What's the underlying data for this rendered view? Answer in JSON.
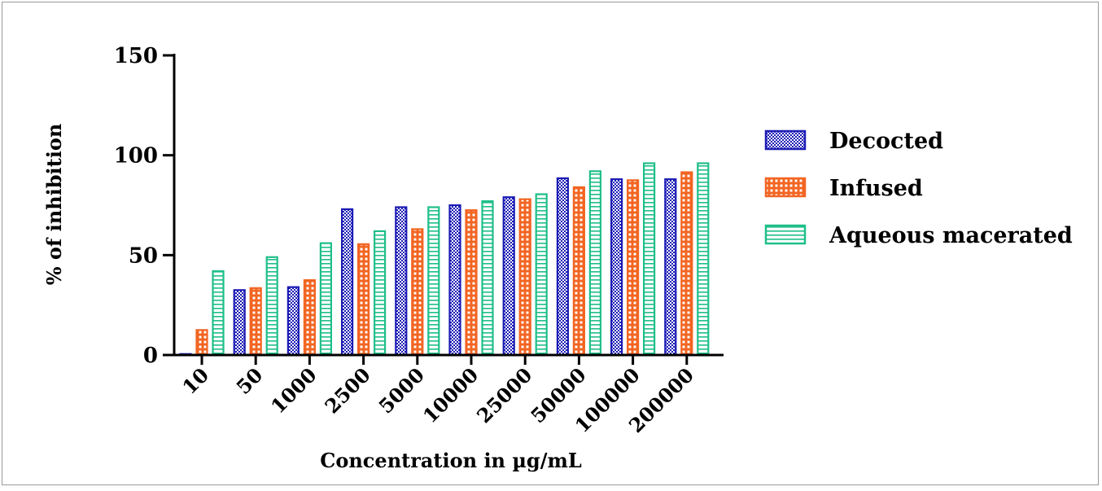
{
  "chart_data": {
    "type": "bar",
    "title": "",
    "xlabel": "Concentration in µg/mL",
    "ylabel": "% of inhibition",
    "ylim": [
      0,
      150
    ],
    "yticks": [
      "0",
      "50",
      "100",
      "150"
    ],
    "categories": [
      "10",
      "50",
      "1000",
      "2500",
      "5000",
      "10000",
      "25000",
      "50000",
      "100000",
      "200000"
    ],
    "series": [
      {
        "name": "Decocted",
        "color": "#1b1bb5",
        "pattern": "checker",
        "values": [
          0.5,
          32.5,
          34,
          73,
          74,
          75,
          79,
          88.5,
          88,
          88
        ]
      },
      {
        "name": "Infused",
        "color": "#f26522",
        "pattern": "grid",
        "values": [
          12.5,
          33.5,
          37.5,
          55.5,
          63,
          72.5,
          78,
          84,
          87.5,
          91.5
        ]
      },
      {
        "name": "Aqueous macerated",
        "color": "#1fbf88",
        "pattern": "stripes",
        "values": [
          42,
          49,
          56,
          62,
          74,
          77,
          80.5,
          92,
          96,
          96
        ]
      }
    ],
    "legend_position": "right",
    "grid": false
  }
}
